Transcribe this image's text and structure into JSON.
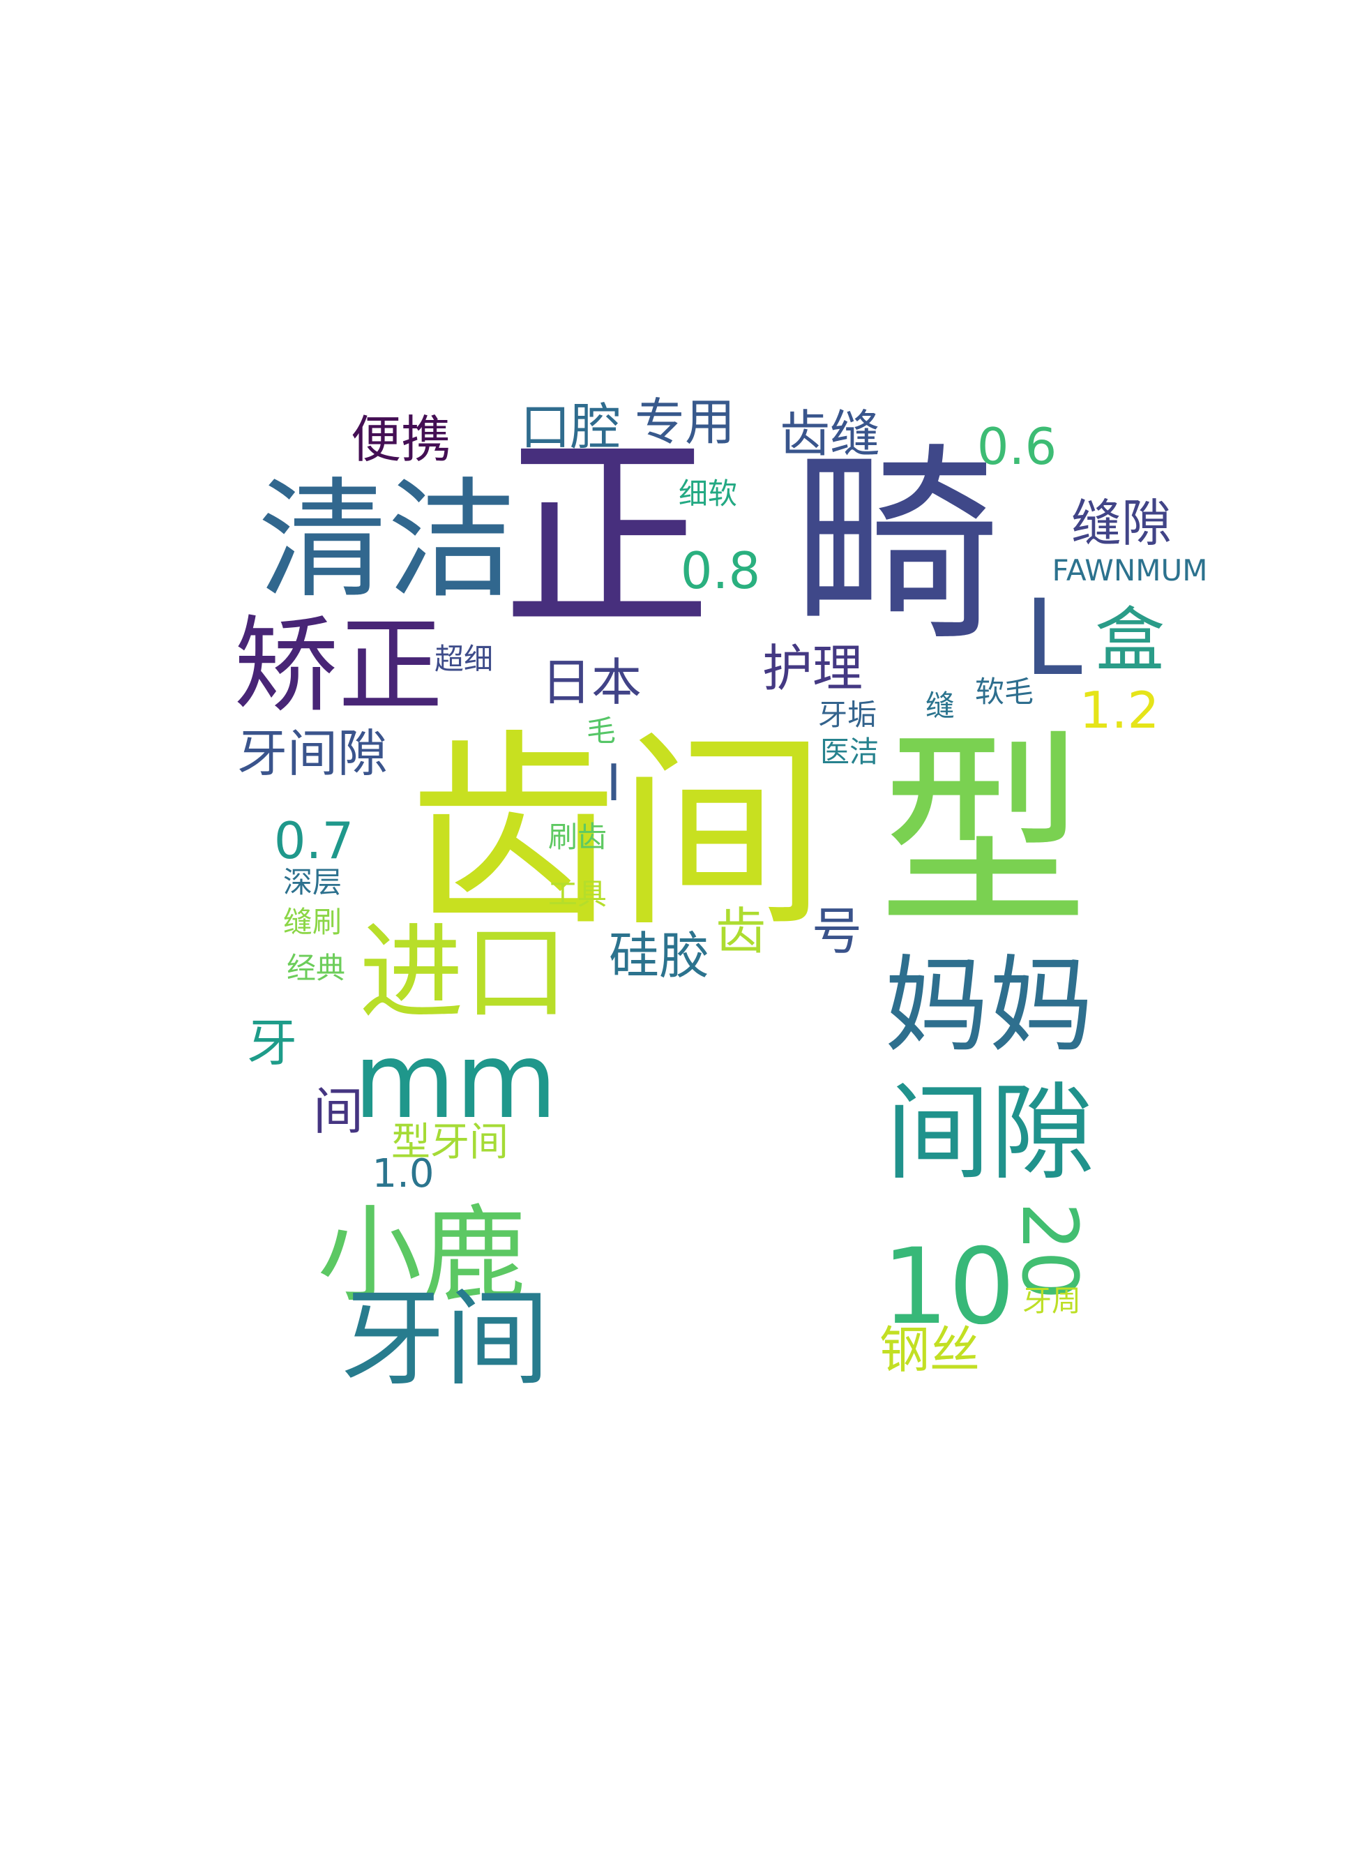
{
  "words": [
    {
      "text": "正",
      "color": "#472f7d",
      "orientation": "horizontal"
    },
    {
      "text": "畸",
      "color": "#3f4889",
      "orientation": "horizontal"
    },
    {
      "text": "齿间",
      "color": "#c8e020",
      "orientation": "horizontal"
    },
    {
      "text": "型",
      "color": "#7ad151",
      "orientation": "horizontal"
    },
    {
      "text": "清洁",
      "color": "#31678e",
      "orientation": "horizontal"
    },
    {
      "text": "矫正",
      "color": "#482576",
      "orientation": "horizontal"
    },
    {
      "text": "L",
      "color": "#3b528b",
      "orientation": "horizontal"
    },
    {
      "text": "盒",
      "color": "#2a9c88",
      "orientation": "horizontal"
    },
    {
      "text": "便携",
      "color": "#440f54",
      "orientation": "horizontal"
    },
    {
      "text": "口腔",
      "color": "#2f6c8e",
      "orientation": "horizontal"
    },
    {
      "text": "专用",
      "color": "#38598c",
      "orientation": "horizontal"
    },
    {
      "text": "齿缝",
      "color": "#39558c",
      "orientation": "horizontal"
    },
    {
      "text": "0.6",
      "color": "#3dbc74",
      "orientation": "horizontal"
    },
    {
      "text": "细软",
      "color": "#23a983",
      "orientation": "horizontal"
    },
    {
      "text": "缝隙",
      "color": "#414487",
      "orientation": "horizontal"
    },
    {
      "text": "FAWNMUM",
      "color": "#2c728e",
      "orientation": "horizontal"
    },
    {
      "text": "0.8",
      "color": "#2ab07f",
      "orientation": "horizontal"
    },
    {
      "text": "日本",
      "color": "#414387",
      "orientation": "horizontal"
    },
    {
      "text": "护理",
      "color": "#443983",
      "orientation": "horizontal"
    },
    {
      "text": "超细",
      "color": "#3e4c8a",
      "orientation": "horizontal"
    },
    {
      "text": "1.2",
      "color": "#e5e419",
      "orientation": "horizontal"
    },
    {
      "text": "牙间隙",
      "color": "#3a548c",
      "orientation": "horizontal"
    },
    {
      "text": "毛",
      "color": "#56c667",
      "orientation": "horizontal"
    },
    {
      "text": "牙垢",
      "color": "#33638d",
      "orientation": "horizontal"
    },
    {
      "text": "缝",
      "color": "#2b748e",
      "orientation": "horizontal"
    },
    {
      "text": "软毛",
      "color": "#2e6e8e",
      "orientation": "horizontal"
    },
    {
      "text": "医洁",
      "color": "#26828e",
      "orientation": "horizontal"
    },
    {
      "text": "I",
      "color": "#38588c",
      "orientation": "horizontal"
    },
    {
      "text": "0.7",
      "color": "#1f988b",
      "orientation": "horizontal"
    },
    {
      "text": "刷齿",
      "color": "#5ec962",
      "orientation": "horizontal"
    },
    {
      "text": "深层",
      "color": "#2d718e",
      "orientation": "horizontal"
    },
    {
      "text": "工具",
      "color": "#b5de2b",
      "orientation": "horizontal"
    },
    {
      "text": "缝刷",
      "color": "#8bd646",
      "orientation": "horizontal"
    },
    {
      "text": "经典",
      "color": "#6ccd5a",
      "orientation": "horizontal"
    },
    {
      "text": "进口",
      "color": "#b8de29",
      "orientation": "horizontal"
    },
    {
      "text": "硅胶",
      "color": "#2c738e",
      "orientation": "horizontal"
    },
    {
      "text": "齿",
      "color": "#addc30",
      "orientation": "horizontal"
    },
    {
      "text": "号",
      "color": "#3a538b",
      "orientation": "horizontal"
    },
    {
      "text": "妈妈",
      "color": "#2e6f8e",
      "orientation": "horizontal"
    },
    {
      "text": "牙",
      "color": "#1e9c89",
      "orientation": "horizontal"
    },
    {
      "text": "mm",
      "color": "#1f978b",
      "orientation": "horizontal"
    },
    {
      "text": "间",
      "color": "#453581",
      "orientation": "horizontal"
    },
    {
      "text": "间隙",
      "color": "#20928c",
      "orientation": "horizontal"
    },
    {
      "text": "型牙间",
      "color": "#a5db36",
      "orientation": "horizontal"
    },
    {
      "text": "1.0",
      "color": "#2b758e",
      "orientation": "horizontal"
    },
    {
      "text": "小鹿",
      "color": "#5cc863",
      "orientation": "horizontal"
    },
    {
      "text": "20",
      "color": "#42be71",
      "orientation": "vertical"
    },
    {
      "text": "10",
      "color": "#37b878",
      "orientation": "horizontal"
    },
    {
      "text": "牙周",
      "color": "#bddf26",
      "orientation": "horizontal"
    },
    {
      "text": "牙间",
      "color": "#287c8e",
      "orientation": "horizontal"
    },
    {
      "text": "钢丝",
      "color": "#c2df23",
      "orientation": "horizontal"
    }
  ]
}
